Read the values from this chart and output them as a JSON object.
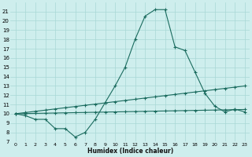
{
  "xlabel": "Humidex (Indice chaleur)",
  "bg_color": "#ceeeed",
  "grid_color": "#a8d8d6",
  "line_color": "#1a6b5e",
  "xlim": [
    -0.5,
    23.5
  ],
  "ylim": [
    7,
    22
  ],
  "yticks": [
    7,
    8,
    9,
    10,
    11,
    12,
    13,
    14,
    15,
    16,
    17,
    18,
    19,
    20,
    21
  ],
  "xticks": [
    0,
    1,
    2,
    3,
    4,
    5,
    6,
    7,
    8,
    9,
    10,
    11,
    12,
    13,
    14,
    15,
    16,
    17,
    18,
    19,
    20,
    21,
    22,
    23
  ],
  "xtick_labels": [
    "0",
    "1",
    "2",
    "3",
    "4",
    "5",
    "6",
    "7",
    "8",
    "9",
    "10",
    "11",
    "12",
    "13",
    "14",
    "15",
    "16",
    "17",
    "18",
    "19",
    "20",
    "21",
    "22",
    "23"
  ],
  "series1_x": [
    0,
    1,
    2,
    3,
    4,
    5,
    6,
    7,
    8,
    9,
    10,
    11,
    12,
    13,
    14,
    15,
    16,
    17,
    18,
    19,
    20,
    21,
    22,
    23
  ],
  "series1_y": [
    10.0,
    9.8,
    9.4,
    9.4,
    8.4,
    8.4,
    7.5,
    8.0,
    9.4,
    11.2,
    13.0,
    15.0,
    18.0,
    20.5,
    21.2,
    21.2,
    17.2,
    16.8,
    14.5,
    12.2,
    10.8,
    10.2,
    10.5,
    10.2
  ],
  "series2_x": [
    0,
    1,
    2,
    3,
    4,
    5,
    6,
    7,
    8,
    9,
    10,
    11,
    12,
    13,
    14,
    15,
    16,
    17,
    18,
    19,
    20,
    21,
    22,
    23
  ],
  "series2_y": [
    10.0,
    10.13,
    10.26,
    10.39,
    10.52,
    10.65,
    10.78,
    10.91,
    11.04,
    11.17,
    11.3,
    11.43,
    11.56,
    11.69,
    11.82,
    11.95,
    12.08,
    12.21,
    12.34,
    12.47,
    12.6,
    12.73,
    12.86,
    12.99
  ],
  "series3_x": [
    0,
    1,
    2,
    3,
    4,
    5,
    6,
    7,
    8,
    9,
    10,
    11,
    12,
    13,
    14,
    15,
    16,
    17,
    18,
    19,
    20,
    21,
    22,
    23
  ],
  "series3_y": [
    10.0,
    10.02,
    10.04,
    10.06,
    10.08,
    10.1,
    10.12,
    10.14,
    10.16,
    10.18,
    10.2,
    10.22,
    10.24,
    10.26,
    10.28,
    10.3,
    10.32,
    10.34,
    10.36,
    10.38,
    10.4,
    10.42,
    10.44,
    10.46
  ]
}
